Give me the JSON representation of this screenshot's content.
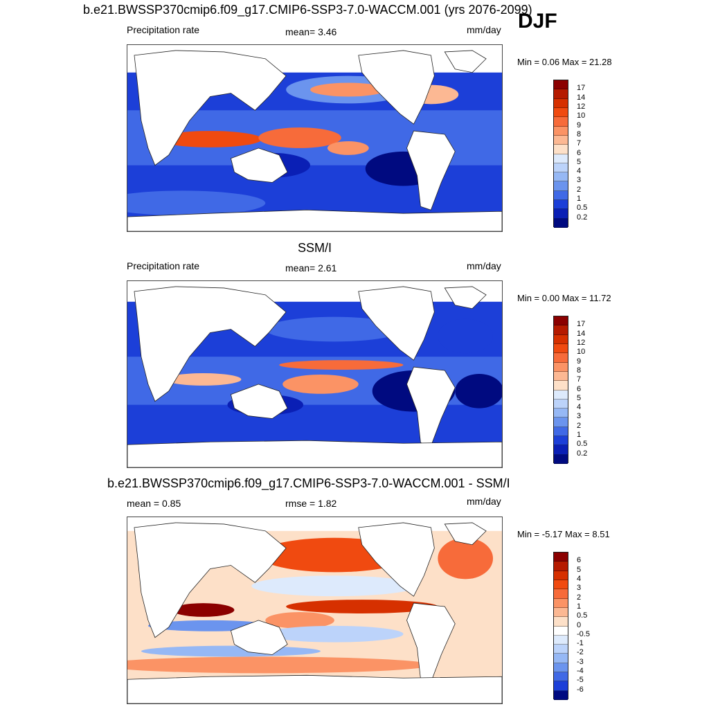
{
  "header": {
    "title": "b.e21.BWSSP370cmip6.f09_g17.CMIP6-SSP3-7.0-WACCM.001 (yrs 2076-2099)",
    "season": "DJF"
  },
  "panels": [
    {
      "title": "",
      "left_label": "Precipitation rate",
      "center_label": "mean=   3.46",
      "right_label": "mm/day",
      "minmax": "Min =   0.06 Max =  21.28",
      "colorbar_labels": [
        "17",
        "14",
        "12",
        "10",
        "9",
        "8",
        "7",
        "6",
        "5",
        "4",
        "3",
        "2",
        "1",
        "0.5",
        "0.2"
      ],
      "colorbar_colors": [
        "#8b0000",
        "#b51a00",
        "#d63000",
        "#f04a10",
        "#f76b3a",
        "#fb9365",
        "#fcb893",
        "#fde0c8",
        "#ddeafc",
        "#bcd3fa",
        "#96b8f5",
        "#6b94ee",
        "#4069e6",
        "#1c3fd8",
        "#0a1fb5",
        "#000a80"
      ]
    },
    {
      "title": "SSM/I",
      "left_label": "Precipitation rate",
      "center_label": "mean=   2.61",
      "right_label": "mm/day",
      "minmax": "Min =   0.00 Max =  11.72",
      "colorbar_labels": [
        "17",
        "14",
        "12",
        "10",
        "9",
        "8",
        "7",
        "6",
        "5",
        "4",
        "3",
        "2",
        "1",
        "0.5",
        "0.2"
      ],
      "colorbar_colors": [
        "#8b0000",
        "#b51a00",
        "#d63000",
        "#f04a10",
        "#f76b3a",
        "#fb9365",
        "#fcb893",
        "#fde0c8",
        "#ddeafc",
        "#bcd3fa",
        "#96b8f5",
        "#6b94ee",
        "#4069e6",
        "#1c3fd8",
        "#0a1fb5",
        "#000a80"
      ]
    },
    {
      "title": "b.e21.BWSSP370cmip6.f09_g17.CMIP6-SSP3-7.0-WACCM.001 - SSM/I",
      "left_label": "mean =   0.85",
      "center_label": "rmse =   1.82",
      "right_label": "mm/day",
      "minmax": "Min =  -5.17 Max =   8.51",
      "colorbar_labels": [
        "6",
        "5",
        "4",
        "3",
        "2",
        "1",
        "0.5",
        "0",
        "-0.5",
        "-1",
        "-2",
        "-3",
        "-4",
        "-5",
        "-6"
      ],
      "colorbar_colors": [
        "#8b0000",
        "#b51a00",
        "#d63000",
        "#f04a10",
        "#f76b3a",
        "#fb9365",
        "#fcb893",
        "#fde0c8",
        "#ffffff",
        "#ddeafc",
        "#bcd3fa",
        "#96b8f5",
        "#6b94ee",
        "#4069e6",
        "#1c3fd8",
        "#000a80"
      ]
    }
  ]
}
